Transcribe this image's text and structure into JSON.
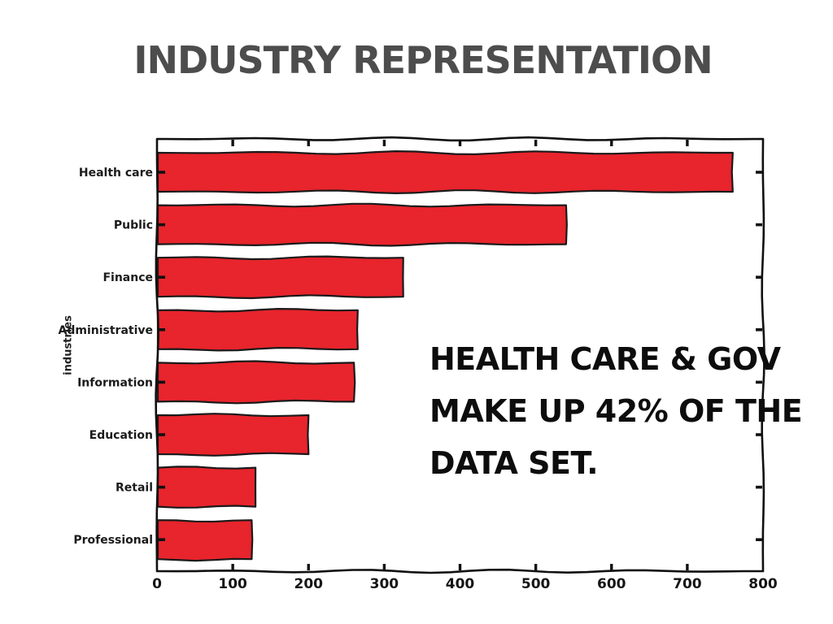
{
  "header": {
    "title": "INDUSTRY REPRESENTATION",
    "title_color": "#4d4d4d"
  },
  "annotation": {
    "lines": [
      "HEALTH CARE & GOV",
      "MAKE UP 42% OF THE",
      "DATA SET."
    ],
    "color": "#0d0d0d"
  },
  "chart_data": {
    "type": "bar",
    "orientation": "horizontal",
    "style": "xkcd-hand-drawn",
    "title": "INDUSTRY REPRESENTATION",
    "xlabel": "",
    "ylabel": "industries",
    "categories": [
      "Health care",
      "Public",
      "Finance",
      "Administrative",
      "Information",
      "Education",
      "Retail",
      "Professional"
    ],
    "values": [
      760,
      540,
      325,
      265,
      260,
      200,
      130,
      125
    ],
    "xlim": [
      0,
      800
    ],
    "x_ticks": [
      0,
      100,
      200,
      300,
      400,
      500,
      600,
      700,
      800
    ],
    "grid": false,
    "legend": "none",
    "bar_color": "#e8242c",
    "bar_outline": "#1a1a1a",
    "axis_color": "#111111",
    "annotation_text": "HEALTH CARE & GOV MAKE UP 42% OF THE DATA SET."
  }
}
